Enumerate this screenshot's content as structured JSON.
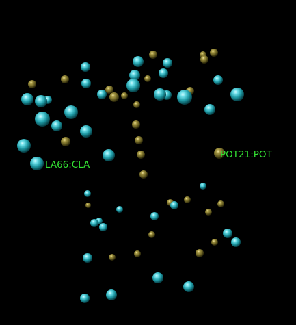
{
  "viewer": {
    "background_color": "#000000",
    "label_color": "#33e033",
    "labels": [
      {
        "text": "LA66:CLA"
      },
      {
        "text": "POT21:POT"
      }
    ],
    "atom_types": {
      "teal": {
        "color": "#2fb4bf"
      },
      "olive": {
        "color": "#8a8032"
      }
    }
  }
}
